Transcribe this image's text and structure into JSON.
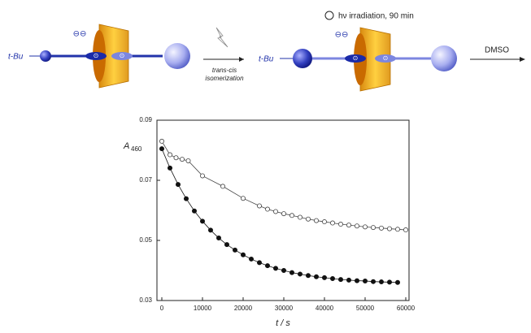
{
  "scheme": {
    "left_group": "t-Bu",
    "left_charges": "⊖⊖",
    "left_ring_charge_a": "⊙",
    "left_ring_charge_b": "⊙",
    "condition": "hν irradiation, 90 min",
    "step_line1": "trans-cis",
    "step_line2": "isomerization",
    "right_group": "t-Bu",
    "right_charges": "⊖⊖",
    "right_ring_charge_a": "⊙",
    "right_ring_charge_b": "⊙",
    "solvent": "DMSO"
  },
  "chart_data": {
    "type": "scatter",
    "ylabel": "A",
    "ylabel_sub": "460",
    "xlabel": "t / s",
    "xlim": [
      -1200,
      60800
    ],
    "ylim": [
      0.03,
      0.09
    ],
    "xticks": [
      0,
      10000,
      20000,
      30000,
      40000,
      50000,
      60000
    ],
    "yticks": [
      0.03,
      0.05,
      0.07,
      0.09
    ],
    "series": [
      {
        "marker": "open",
        "color": "#444444",
        "x": [
          0,
          2000,
          3500,
          5000,
          6500,
          10000,
          15000,
          20000,
          24000,
          26000,
          28000,
          30000,
          32000,
          34000,
          36000,
          38000,
          40000,
          42000,
          44000,
          46000,
          48000,
          50000,
          52000,
          54000,
          56000,
          58000,
          60000
        ],
        "values": [
          0.083,
          0.0785,
          0.0775,
          0.077,
          0.0765,
          0.0715,
          0.068,
          0.064,
          0.0615,
          0.0604,
          0.0596,
          0.0589,
          0.0583,
          0.0577,
          0.0571,
          0.0566,
          0.0562,
          0.0558,
          0.0554,
          0.0551,
          0.0548,
          0.0545,
          0.0543,
          0.0541,
          0.0539,
          0.0537,
          0.0535
        ]
      },
      {
        "marker": "filled",
        "color": "#111111",
        "x": [
          0,
          2000,
          4000,
          6000,
          8000,
          10000,
          12000,
          14000,
          16000,
          18000,
          20000,
          22000,
          24000,
          26000,
          28000,
          30000,
          32000,
          34000,
          36000,
          38000,
          40000,
          42000,
          44000,
          46000,
          48000,
          50000,
          52000,
          54000,
          56000,
          58000
        ],
        "values": [
          0.0805,
          0.0741,
          0.0686,
          0.0639,
          0.0598,
          0.0564,
          0.0534,
          0.0508,
          0.0486,
          0.0468,
          0.0452,
          0.0438,
          0.0426,
          0.0416,
          0.0407,
          0.04,
          0.0393,
          0.0388,
          0.0383,
          0.0379,
          0.0376,
          0.0373,
          0.037,
          0.0368,
          0.0366,
          0.0365,
          0.0363,
          0.0362,
          0.0361,
          0.036
        ]
      }
    ]
  }
}
